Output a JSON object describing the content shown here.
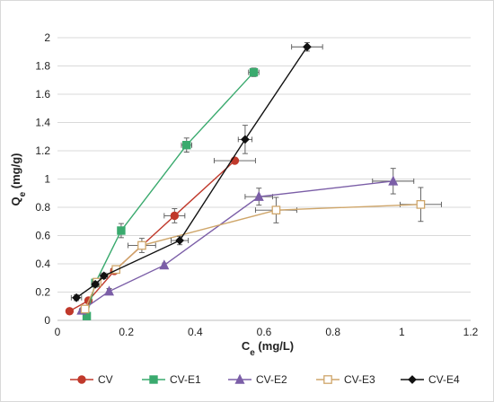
{
  "chart_data": {
    "type": "scatter",
    "title": "",
    "xlabel": {
      "main": "C",
      "sub": "e",
      "unit": " (mg/L)"
    },
    "ylabel": {
      "main": "Q",
      "sub": "e",
      "unit": " (mg/g)"
    },
    "xlim": [
      0,
      1.2
    ],
    "ylim": [
      0,
      2
    ],
    "xticks": [
      0,
      0.2,
      0.4,
      0.6,
      0.8,
      1,
      1.2
    ],
    "yticks": [
      0,
      0.2,
      0.4,
      0.6,
      0.8,
      1,
      1.2,
      1.4,
      1.6,
      1.8,
      2
    ],
    "xtick_labels": [
      "0",
      "0.2",
      "0.4",
      "0.6",
      "0.8",
      "1",
      "1.2"
    ],
    "ytick_labels": [
      "0",
      "0.2",
      "0.4",
      "0.6",
      "0.8",
      "1",
      "1.2",
      "1.4",
      "1.6",
      "1.8",
      "2"
    ],
    "grid": "horizontal",
    "legend_position": "bottom",
    "series": [
      {
        "name": "CV",
        "color": "#c0392b",
        "marker": "circle",
        "x": [
          0.035,
          0.09,
          0.165,
          0.34,
          0.515
        ],
        "y": [
          0.065,
          0.14,
          0.35,
          0.74,
          1.13
        ],
        "xerr": [
          0.0,
          0.0,
          0.01,
          0.03,
          0.06
        ],
        "yerr": [
          0.0,
          0.01,
          0.02,
          0.05,
          0.0
        ]
      },
      {
        "name": "CV-E1",
        "color": "#3aaa6e",
        "marker": "square",
        "x": [
          0.085,
          0.11,
          0.185,
          0.375,
          0.57
        ],
        "y": [
          0.03,
          0.265,
          0.635,
          1.24,
          1.755
        ],
        "xerr": [
          0.005,
          0.005,
          0.01,
          0.015,
          0.015
        ],
        "yerr": [
          0.02,
          0.03,
          0.05,
          0.05,
          0.03
        ]
      },
      {
        "name": "CV-E2",
        "color": "#7b5ea7",
        "marker": "triangle",
        "x": [
          0.07,
          0.15,
          0.31,
          0.585,
          0.975
        ],
        "y": [
          0.07,
          0.205,
          0.39,
          0.875,
          0.985
        ],
        "xerr": [
          0.005,
          0.005,
          0.005,
          0.04,
          0.06
        ],
        "yerr": [
          0.01,
          0.02,
          0.0,
          0.06,
          0.09
        ]
      },
      {
        "name": "CV-E3",
        "color": "#cfa66a",
        "marker": "open-square",
        "x": [
          0.08,
          0.115,
          0.17,
          0.245,
          0.635,
          1.055
        ],
        "y": [
          0.08,
          0.27,
          0.36,
          0.53,
          0.78,
          0.82
        ],
        "xerr": [
          0.005,
          0.01,
          0.01,
          0.04,
          0.06,
          0.06
        ],
        "yerr": [
          0.01,
          0.02,
          0.02,
          0.05,
          0.09,
          0.12
        ]
      },
      {
        "name": "CV-E4",
        "color": "#111111",
        "marker": "diamond",
        "x": [
          0.055,
          0.11,
          0.135,
          0.355,
          0.545,
          0.725
        ],
        "y": [
          0.16,
          0.255,
          0.315,
          0.565,
          1.28,
          1.935
        ],
        "xerr": [
          0.015,
          0.01,
          0.01,
          0.025,
          0.02,
          0.045
        ],
        "yerr": [
          0.02,
          0.02,
          0.02,
          0.03,
          0.1,
          0.03
        ]
      }
    ]
  }
}
